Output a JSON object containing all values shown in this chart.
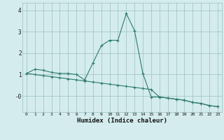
{
  "xlabel": "Humidex (Indice chaleur)",
  "bg_color": "#d4ecee",
  "grid_color": "#9bbfbf",
  "line_color": "#2d7a6e",
  "marker_color": "#2d7a6e",
  "xlim": [
    -0.5,
    23.5
  ],
  "ylim": [
    -0.75,
    4.35
  ],
  "xticks": [
    0,
    1,
    2,
    3,
    4,
    5,
    6,
    7,
    8,
    9,
    10,
    11,
    12,
    13,
    14,
    15,
    16,
    17,
    18,
    19,
    20,
    21,
    22,
    23
  ],
  "yticks": [
    0,
    1,
    2,
    3,
    4
  ],
  "ytick_labels": [
    "-0",
    "1",
    "2",
    "3",
    "4"
  ],
  "series1_x": [
    0,
    1,
    2,
    3,
    4,
    5,
    6,
    7,
    8,
    9,
    10,
    11,
    12,
    13,
    14,
    15,
    16,
    17,
    18,
    19,
    20,
    21,
    22,
    23
  ],
  "series1_y": [
    1.05,
    1.25,
    1.2,
    1.1,
    1.05,
    1.05,
    1.0,
    0.75,
    1.55,
    2.35,
    2.6,
    2.6,
    3.85,
    3.05,
    1.05,
    -0.05,
    -0.05,
    -0.1,
    -0.15,
    -0.2,
    -0.3,
    -0.35,
    -0.45,
    -0.5
  ],
  "series2_x": [
    0,
    1,
    2,
    3,
    4,
    5,
    6,
    7,
    8,
    9,
    10,
    11,
    12,
    13,
    14,
    15,
    16,
    17,
    18,
    19,
    20,
    21,
    22,
    23
  ],
  "series2_y": [
    1.05,
    1.0,
    0.95,
    0.9,
    0.85,
    0.8,
    0.75,
    0.7,
    0.65,
    0.6,
    0.55,
    0.5,
    0.45,
    0.4,
    0.35,
    0.3,
    -0.05,
    -0.1,
    -0.15,
    -0.2,
    -0.3,
    -0.35,
    -0.45,
    -0.5
  ]
}
